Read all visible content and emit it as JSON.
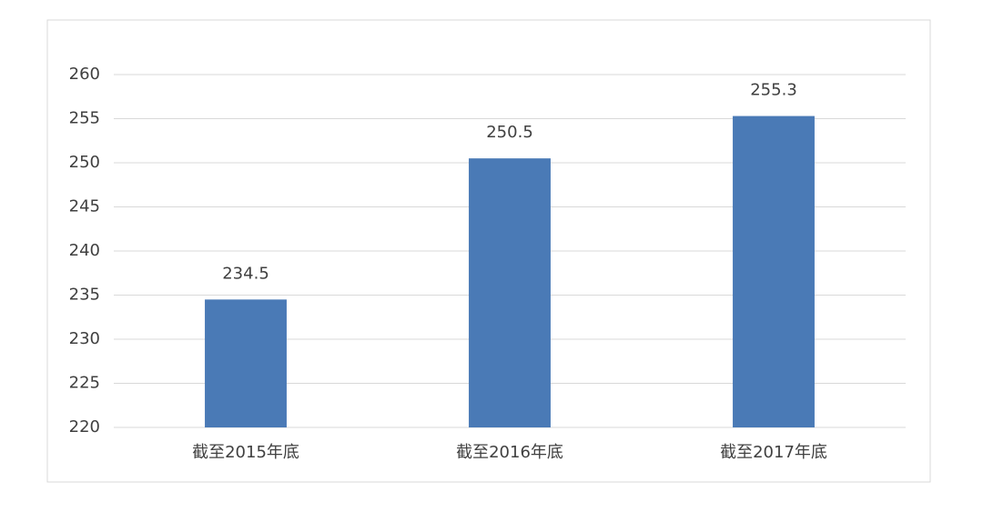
{
  "chart_data": {
    "type": "bar",
    "categories": [
      "截至2015年底",
      "截至2016年底",
      "截至2017年底"
    ],
    "values": [
      234.5,
      250.5,
      255.3
    ],
    "color": "#4a7ab6",
    "ylim": [
      220,
      260
    ],
    "yticks": [
      220,
      225,
      230,
      235,
      240,
      245,
      250,
      255,
      260
    ],
    "grid": true,
    "data_labels": true
  }
}
